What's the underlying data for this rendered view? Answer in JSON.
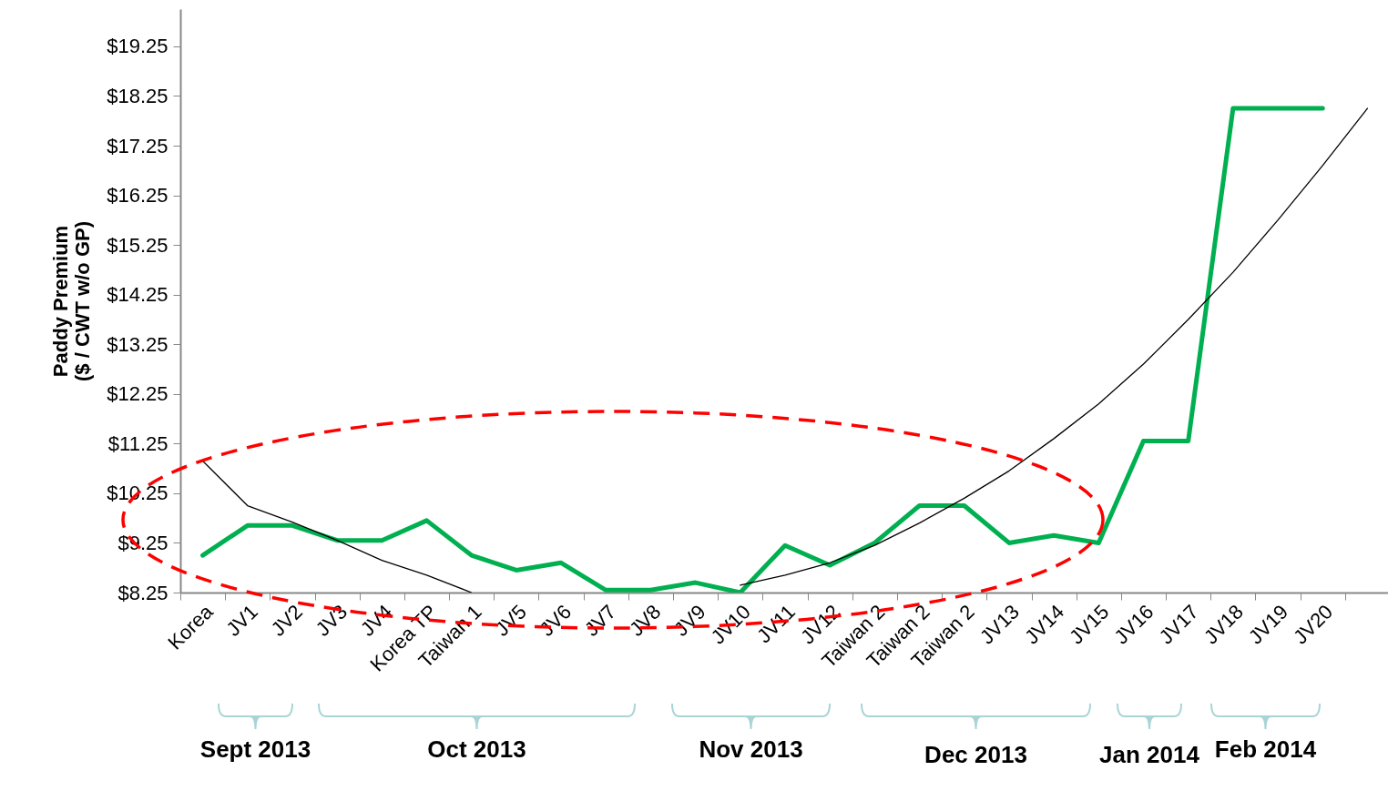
{
  "chart_data": {
    "type": "line",
    "ylabel": "Paddy Premium\n($ / CWT w/o GP)",
    "categories": [
      "Korea",
      "JV1",
      "JV2",
      "JV3",
      "JV4",
      "Korea TP",
      "Taiwan 1",
      "JV5",
      "JV6",
      "JV7",
      "JV8",
      "JV9",
      "JV10",
      "JV11",
      "JV12",
      "Taiwan 2",
      "Taiwan 2",
      "Taiwan 2",
      "JV13",
      "JV14",
      "JV15",
      "JV16",
      "JV17",
      "JV18",
      "JV19",
      "JV20",
      null
    ],
    "series": [
      {
        "color": "#00b050",
        "values": [
          9.0,
          9.6,
          9.6,
          9.3,
          9.3,
          9.7,
          9.0,
          8.7,
          8.85,
          8.3,
          8.3,
          8.45,
          8.25,
          9.2,
          8.8,
          9.25,
          10.0,
          10.0,
          9.25,
          9.4,
          9.25,
          11.3,
          11.3,
          18.0,
          18.0,
          18.0,
          null
        ]
      },
      {
        "type": "line",
        "color": "#000000",
        "values": [
          10.9,
          10.0,
          9.67,
          9.3,
          8.9,
          8.6,
          8.25,
          null,
          null,
          null,
          null,
          null,
          8.4,
          8.6,
          8.85,
          9.2,
          9.65,
          10.15,
          10.7,
          11.35,
          12.05,
          12.85,
          13.75,
          14.7,
          15.75,
          16.85,
          18.0
        ]
      }
    ],
    "ylim": [
      8.25,
      20
    ],
    "yticks": [
      {
        "value": 8.25,
        "label": "$8.25"
      },
      {
        "value": 9.25,
        "label": "$9.25"
      },
      {
        "value": 10.25,
        "label": "$10.25"
      },
      {
        "value": 11.25,
        "label": "$11.25"
      },
      {
        "value": 12.25,
        "label": "$12.25"
      },
      {
        "value": 13.25,
        "label": "$13.25"
      },
      {
        "value": 14.25,
        "label": "$14.25"
      },
      {
        "value": 15.25,
        "label": "$15.25"
      },
      {
        "value": 16.25,
        "label": "$16.25"
      },
      {
        "value": 17.25,
        "label": "$17.25"
      },
      {
        "value": 18.25,
        "label": "$18.25"
      },
      {
        "value": 19.25,
        "label": "$19.25"
      }
    ],
    "grid": false,
    "marker": "none",
    "line_style": "solid",
    "annotations": [
      "Sept 2013",
      "Oct 2013",
      "Nov 2013",
      "Dec 2013",
      "Jan 2014",
      "Feb 2014"
    ]
  }
}
